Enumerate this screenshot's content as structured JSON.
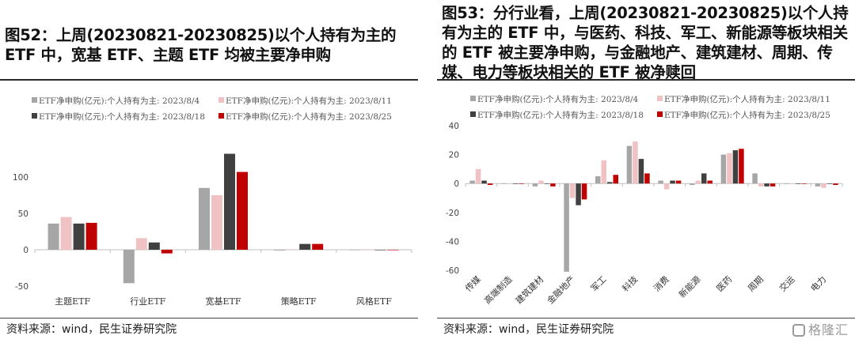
{
  "colors": {
    "s1": "#a6a6a6",
    "s2": "#f0c2c3",
    "s3": "#404040",
    "s4": "#c00000"
  },
  "left": {
    "title": "图52：上周(20230821-20230825)以个人持有为主的 ETF 中，宽基 ETF、主题 ETF 均被主要净申购",
    "source": "资料来源：wind，民生证券研究院"
  },
  "right": {
    "title": "图53：分行业看，上周(20230821-20230825)以个人持有为主的 ETF 中，与医药、科技、军工、新能源等板块相关的 ETF 被主要净申购，与金融地产、建筑建材、周期、传媒、电力等板块相关的 ETF 被净赎回",
    "source": "资料来源：wind，民生证券研究院",
    "watermark": "格隆汇"
  },
  "chart_data": [
    {
      "type": "bar",
      "categories": [
        "主题ETF",
        "行业ETF",
        "宽基ETF",
        "策略ETF",
        "风格ETF"
      ],
      "series": [
        {
          "name": "ETF净申购(亿元):个人持有为主: 2023/8/4",
          "values": [
            36,
            -46,
            85,
            -1,
            0
          ]
        },
        {
          "name": "ETF净申购(亿元):个人持有为主: 2023/8/11",
          "values": [
            45,
            16,
            75,
            0,
            0
          ]
        },
        {
          "name": "ETF净申购(亿元):个人持有为主: 2023/8/18",
          "values": [
            36,
            10,
            132,
            8,
            0
          ]
        },
        {
          "name": "ETF净申购(亿元):个人持有为主: 2023/8/25",
          "values": [
            37,
            -5,
            107,
            8,
            0
          ]
        }
      ],
      "yticks": [
        -50,
        0,
        50,
        100,
        150
      ],
      "ytick_labels": [
        "-50",
        "0",
        "50",
        "100",
        ""
      ],
      "ylim": [
        -50,
        150
      ],
      "grid": false,
      "legend": "top"
    },
    {
      "type": "bar",
      "categories": [
        "传媒",
        "高端制造",
        "建筑建材",
        "金融地产",
        "军工",
        "科技",
        "消费",
        "新能源",
        "医药",
        "周期",
        "交运",
        "电力"
      ],
      "series": [
        {
          "name": "ETF净申购(亿元):个人持有为主: 2023/8/4",
          "values": [
            2,
            0,
            -2,
            -61,
            5,
            26,
            2,
            -1,
            20,
            7,
            0,
            -2
          ]
        },
        {
          "name": "ETF净申购(亿元):个人持有为主: 2023/8/11",
          "values": [
            10,
            0,
            2,
            -10,
            16,
            29,
            -4,
            2,
            21,
            -2,
            0,
            -3
          ]
        },
        {
          "name": "ETF净申购(亿元):个人持有为主: 2023/8/18",
          "values": [
            2,
            0,
            0,
            -15,
            1,
            17,
            2,
            7,
            23,
            -2,
            0,
            0
          ]
        },
        {
          "name": "ETF净申购(亿元):个人持有为主: 2023/8/25",
          "values": [
            -1,
            0,
            -2,
            -11,
            6,
            7,
            2,
            2,
            24,
            -2,
            0,
            -1
          ]
        }
      ],
      "yticks": [
        -60,
        -40,
        -20,
        0,
        20,
        40
      ],
      "ytick_labels": [
        "-60",
        "-40",
        "-20",
        "0",
        "20",
        "40"
      ],
      "ylim": [
        -60,
        40
      ],
      "grid": false,
      "legend": "top"
    }
  ]
}
